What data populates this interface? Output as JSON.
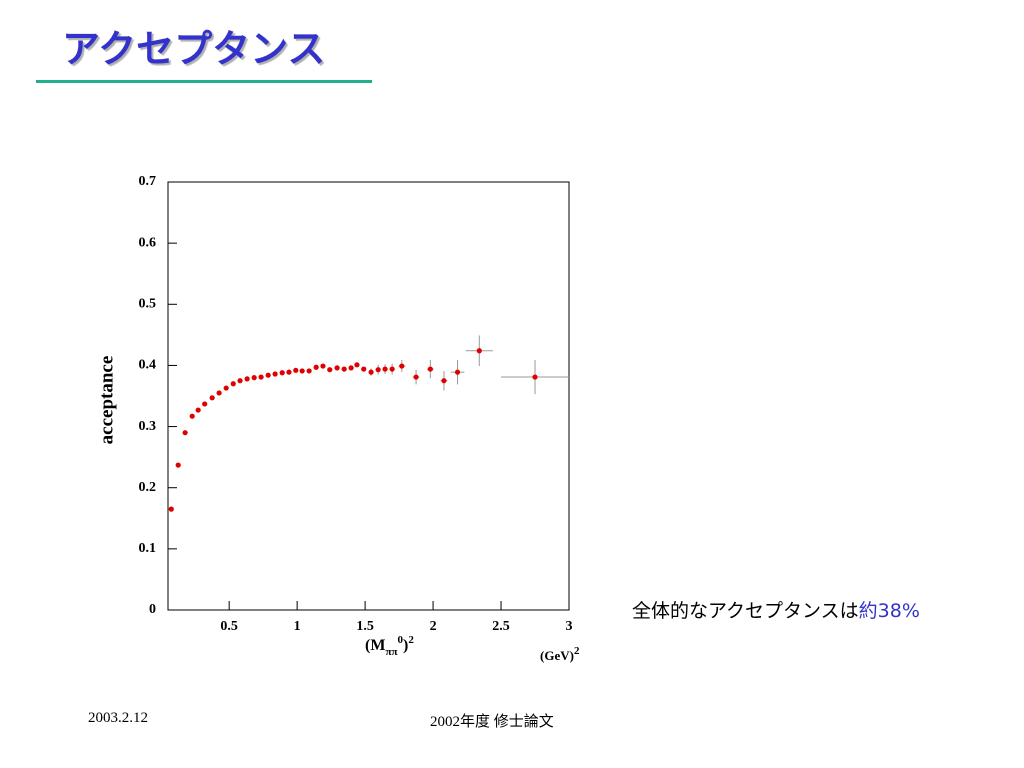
{
  "header": {
    "title": "アクセプタンス"
  },
  "chart_data": {
    "type": "scatter",
    "y_label": "acceptance",
    "x_label_parts": [
      {
        "text": "(M"
      },
      {
        "text": "ππ",
        "shift": "sub"
      },
      {
        "text": "0",
        "shift": "super"
      },
      {
        "text": ")"
      },
      {
        "text": "2",
        "shift": "super"
      }
    ],
    "unit_parts": [
      {
        "text": "(GeV)"
      },
      {
        "text": "2",
        "shift": "super"
      }
    ],
    "color": "#e00000",
    "error_color": "#999999",
    "xlim": [
      0.05,
      3
    ],
    "xticks": [
      0.5,
      1,
      1.5,
      2,
      2.5,
      3
    ],
    "ylim": [
      0,
      0.7
    ],
    "yticks": [
      0,
      0.1,
      0.2,
      0.3,
      0.4,
      0.5,
      0.6,
      0.7
    ],
    "x": [
      0.074,
      0.125,
      0.176,
      0.228,
      0.272,
      0.32,
      0.375,
      0.426,
      0.478,
      0.53,
      0.58,
      0.632,
      0.684,
      0.735,
      0.787,
      0.838,
      0.89,
      0.94,
      0.99,
      1.037,
      1.088,
      1.14,
      1.19,
      1.24,
      1.294,
      1.346,
      1.397,
      1.44,
      1.49,
      1.544,
      1.596,
      1.647,
      1.699,
      1.77,
      1.875,
      1.98,
      2.08,
      2.18,
      2.34,
      2.75
    ],
    "values": [
      0.165,
      0.237,
      0.29,
      0.317,
      0.327,
      0.337,
      0.347,
      0.355,
      0.363,
      0.37,
      0.375,
      0.378,
      0.38,
      0.381,
      0.384,
      0.386,
      0.388,
      0.389,
      0.392,
      0.391,
      0.391,
      0.397,
      0.399,
      0.393,
      0.396,
      0.394,
      0.396,
      0.401,
      0.394,
      0.389,
      0.393,
      0.394,
      0.394,
      0.399,
      0.381,
      0.394,
      0.375,
      0.389,
      0.424,
      0.381
    ],
    "errors": [
      null,
      null,
      null,
      null,
      null,
      null,
      null,
      null,
      null,
      null,
      null,
      null,
      null,
      null,
      null,
      null,
      null,
      null,
      null,
      null,
      null,
      null,
      null,
      null,
      null,
      null,
      null,
      null,
      null,
      0.006,
      0.008,
      0.008,
      0.009,
      0.01,
      0.012,
      0.015,
      0.016,
      0.02,
      0.025,
      0.028
    ],
    "x_errors": [
      null,
      null,
      null,
      null,
      null,
      null,
      null,
      null,
      null,
      null,
      null,
      null,
      null,
      null,
      null,
      null,
      null,
      null,
      null,
      null,
      null,
      null,
      null,
      null,
      null,
      null,
      null,
      null,
      null,
      null,
      null,
      null,
      null,
      0.025,
      0.025,
      0.025,
      0.025,
      0.05,
      0.1,
      0.25
    ]
  },
  "annotation": {
    "prefix": "全体的なアクセプタンスは",
    "highlight": "約38%"
  },
  "footer": {
    "date": "2003.2.12",
    "center": "2002年度 修士論文"
  }
}
